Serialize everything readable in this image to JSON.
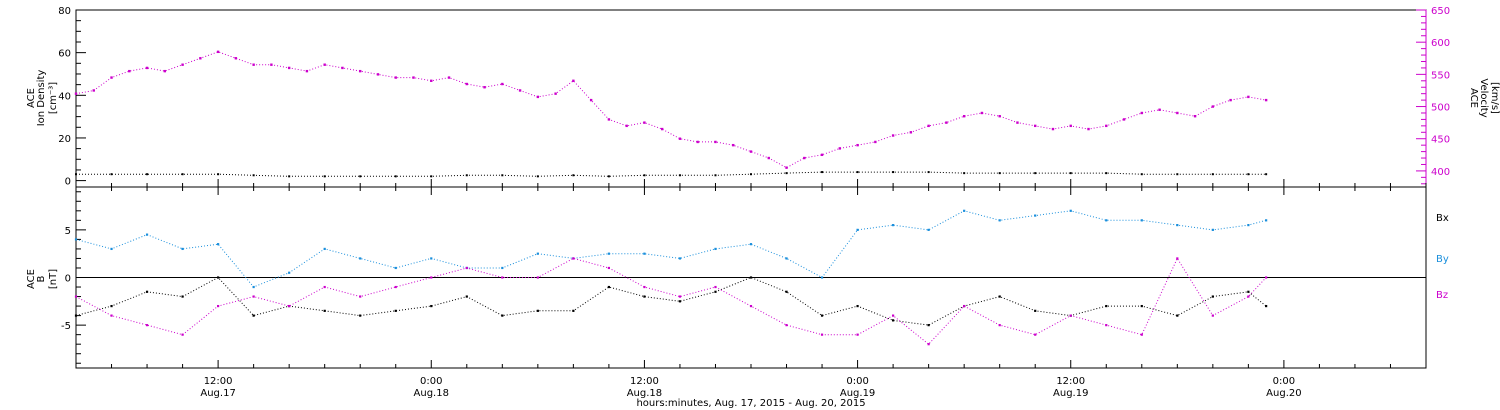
{
  "figure": {
    "xlabel": "hours:minutes, Aug. 17, 2015 - Aug. 20, 2015",
    "x_ticks": [
      {
        "time": "12:00",
        "date": "Aug.17",
        "hours": 12
      },
      {
        "time": "0:00",
        "date": "Aug.18",
        "hours": 24
      },
      {
        "time": "12:00",
        "date": "Aug.18",
        "hours": 36
      },
      {
        "time": "0:00",
        "date": "Aug.19",
        "hours": 48
      },
      {
        "time": "12:00",
        "date": "Aug.19",
        "hours": 60
      },
      {
        "time": "0:00",
        "date": "Aug.20",
        "hours": 72
      }
    ],
    "xlim_hours": [
      4.0,
      80.0
    ]
  },
  "colors": {
    "density": "#000000",
    "velocity": "#cc00cc",
    "bx": "#000000",
    "by": "#1a8fdc",
    "bz": "#cc00cc",
    "axis": "#000000"
  },
  "chart_data": [
    {
      "type": "scatter",
      "panel": "plasma",
      "xlabel": "hours:minutes, Aug. 17, 2015 - Aug. 20, 2015",
      "ylabel": "ACE Ion Density [cm^-3]",
      "ylabel_lines": [
        "ACE",
        "Ion Density",
        "[cm⁻³]"
      ],
      "ylim": [
        -3,
        80
      ],
      "yticks": [
        0,
        20,
        40,
        60,
        80
      ],
      "y2label": "ACE Velocity [km/s]",
      "y2label_lines": [
        "ACE",
        "Velocity",
        "[km/s]"
      ],
      "y2lim": [
        375,
        650
      ],
      "y2ticks": [
        400,
        450,
        500,
        550,
        600,
        650
      ],
      "grid": false,
      "series": [
        {
          "axis": "left",
          "color": "#000000",
          "x": [
            4,
            6,
            8,
            10,
            12,
            14,
            16,
            18,
            20,
            22,
            24,
            26,
            28,
            30,
            32,
            34,
            36,
            38,
            40,
            42,
            44,
            46,
            48,
            50,
            52,
            54,
            56,
            58,
            60,
            62,
            64,
            66,
            68,
            70,
            71
          ],
          "y": [
            3,
            3,
            3,
            3,
            3,
            2.5,
            2,
            2,
            2,
            2,
            2,
            2.5,
            2.5,
            2,
            2.5,
            2,
            2.5,
            2.5,
            2.5,
            3,
            3.5,
            4,
            4,
            4,
            4,
            3.5,
            3.5,
            3.5,
            3.5,
            3.5,
            3,
            3,
            3,
            3,
            3
          ]
        },
        {
          "axis": "right",
          "color": "#cc00cc",
          "x": [
            4,
            5,
            6,
            7,
            8,
            9,
            10,
            11,
            12,
            13,
            14,
            15,
            16,
            17,
            18,
            19,
            20,
            21,
            22,
            23,
            24,
            25,
            26,
            27,
            28,
            29,
            30,
            31,
            32,
            33,
            34,
            35,
            36,
            37,
            38,
            39,
            40,
            41,
            42,
            43,
            44,
            45,
            46,
            47,
            48,
            49,
            50,
            51,
            52,
            53,
            54,
            55,
            56,
            57,
            58,
            59,
            60,
            61,
            62,
            63,
            64,
            65,
            66,
            67,
            68,
            69,
            70,
            71
          ],
          "y": [
            520,
            525,
            545,
            555,
            560,
            555,
            565,
            575,
            585,
            575,
            565,
            565,
            560,
            555,
            565,
            560,
            555,
            550,
            545,
            545,
            540,
            545,
            535,
            530,
            535,
            525,
            515,
            520,
            540,
            510,
            480,
            470,
            475,
            465,
            450,
            445,
            445,
            440,
            430,
            420,
            405,
            420,
            425,
            435,
            440,
            445,
            455,
            460,
            470,
            475,
            485,
            490,
            485,
            475,
            470,
            465,
            470,
            465,
            470,
            480,
            490,
            495,
            490,
            485,
            500,
            510,
            515,
            510
          ]
        }
      ]
    },
    {
      "type": "scatter",
      "panel": "magnetic-field",
      "xlabel": "hours:minutes, Aug. 17, 2015 - Aug. 20, 2015",
      "ylabel": "ACE B [nT]",
      "ylabel_lines": [
        "ACE",
        "B",
        "[nT]"
      ],
      "ylim": [
        -9.5,
        9.5
      ],
      "yticks": [
        -5,
        0,
        5
      ],
      "zero_line": true,
      "grid": false,
      "series": [
        {
          "name": "Bx",
          "color": "#000000",
          "x": [
            4,
            6,
            8,
            10,
            12,
            14,
            16,
            18,
            20,
            22,
            24,
            26,
            28,
            30,
            32,
            34,
            36,
            38,
            40,
            42,
            44,
            46,
            48,
            50,
            52,
            54,
            56,
            58,
            60,
            62,
            64,
            66,
            68,
            70,
            71
          ],
          "y": [
            -4,
            -3,
            -1.5,
            -2,
            0,
            -4,
            -3,
            -3.5,
            -4,
            -3.5,
            -3,
            -2,
            -4,
            -3.5,
            -3.5,
            -1,
            -2,
            -2.5,
            -1.5,
            0,
            -1.5,
            -4,
            -3,
            -4.5,
            -5,
            -3,
            -2,
            -3.5,
            -4,
            -3,
            -3,
            -4,
            -2,
            -1.5,
            -3
          ]
        },
        {
          "name": "By",
          "color": "#1a8fdc",
          "x": [
            4,
            6,
            8,
            10,
            12,
            14,
            16,
            18,
            20,
            22,
            24,
            26,
            28,
            30,
            32,
            34,
            36,
            38,
            40,
            42,
            44,
            46,
            48,
            50,
            52,
            54,
            56,
            58,
            60,
            62,
            64,
            66,
            68,
            70,
            71
          ],
          "y": [
            4,
            3,
            4.5,
            3,
            3.5,
            -1,
            0.5,
            3,
            2,
            1,
            2,
            1,
            1,
            2.5,
            2,
            2.5,
            2.5,
            2,
            3,
            3.5,
            2,
            0,
            5,
            5.5,
            5,
            7,
            6,
            6.5,
            7,
            6,
            6,
            5.5,
            5,
            5.5,
            6
          ]
        },
        {
          "name": "Bz",
          "color": "#cc00cc",
          "x": [
            4,
            6,
            8,
            10,
            12,
            14,
            16,
            18,
            20,
            22,
            24,
            26,
            28,
            30,
            32,
            34,
            36,
            38,
            40,
            42,
            44,
            46,
            48,
            50,
            52,
            54,
            56,
            58,
            60,
            62,
            64,
            66,
            68,
            70,
            71
          ],
          "y": [
            -2,
            -4,
            -5,
            -6,
            -3,
            -2,
            -3,
            -1,
            -2,
            -1,
            0,
            1,
            0,
            0,
            2,
            1,
            -1,
            -2,
            -1,
            -3,
            -5,
            -6,
            -6,
            -4,
            -7,
            -3,
            -5,
            -6,
            -4,
            -5,
            -6,
            2,
            -4,
            -2,
            0
          ]
        }
      ]
    }
  ]
}
